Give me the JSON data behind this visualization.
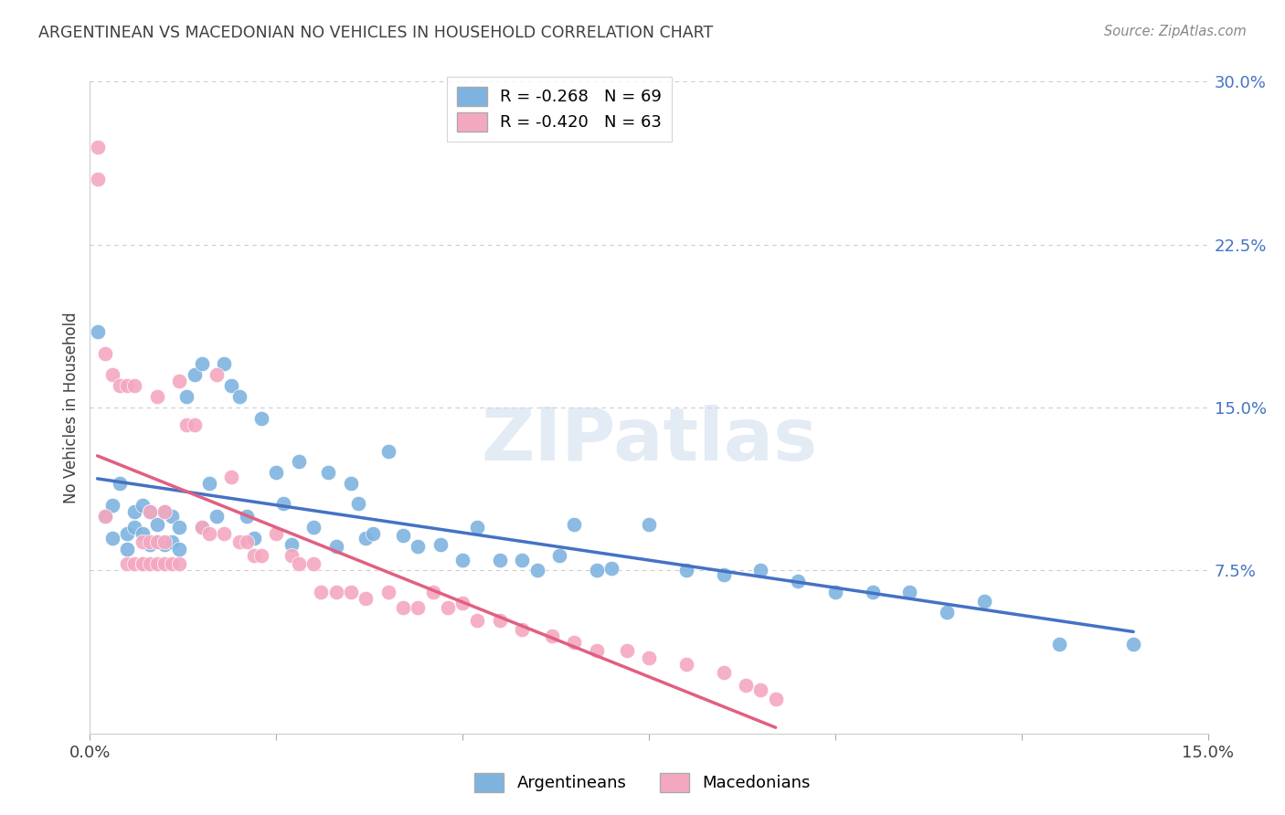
{
  "title": "ARGENTINEAN VS MACEDONIAN NO VEHICLES IN HOUSEHOLD CORRELATION CHART",
  "source": "Source: ZipAtlas.com",
  "ylabel": "No Vehicles in Household",
  "watermark": "ZIPatlas",
  "xlim": [
    0.0,
    0.15
  ],
  "ylim": [
    0.0,
    0.3
  ],
  "xtick_positions": [
    0.0,
    0.025,
    0.05,
    0.075,
    0.1,
    0.125,
    0.15
  ],
  "xtick_labels": [
    "0.0%",
    "",
    "",
    "",
    "",
    "",
    "15.0%"
  ],
  "ytick_labels_right": [
    "7.5%",
    "15.0%",
    "22.5%",
    "30.0%"
  ],
  "yticks_right": [
    0.075,
    0.15,
    0.225,
    0.3
  ],
  "argentinean_R": -0.268,
  "argentinean_N": 69,
  "macedonian_R": -0.42,
  "macedonian_N": 63,
  "argentinean_color": "#7eb3e0",
  "macedonian_color": "#f4a8c0",
  "regression_line_arg_color": "#4472c4",
  "regression_line_mac_color": "#e06080",
  "background_color": "#ffffff",
  "grid_color": "#cccccc",
  "title_color": "#404040",
  "tick_color_right": "#4472c4",
  "argentinean_x": [
    0.001,
    0.002,
    0.003,
    0.003,
    0.004,
    0.005,
    0.005,
    0.006,
    0.006,
    0.007,
    0.007,
    0.008,
    0.008,
    0.009,
    0.009,
    0.01,
    0.01,
    0.011,
    0.011,
    0.012,
    0.012,
    0.013,
    0.014,
    0.015,
    0.015,
    0.016,
    0.017,
    0.018,
    0.019,
    0.02,
    0.021,
    0.022,
    0.023,
    0.025,
    0.026,
    0.027,
    0.028,
    0.03,
    0.032,
    0.033,
    0.035,
    0.036,
    0.037,
    0.038,
    0.04,
    0.042,
    0.044,
    0.047,
    0.05,
    0.052,
    0.055,
    0.058,
    0.06,
    0.063,
    0.065,
    0.068,
    0.07,
    0.075,
    0.08,
    0.085,
    0.09,
    0.095,
    0.1,
    0.105,
    0.11,
    0.115,
    0.12,
    0.13,
    0.14
  ],
  "argentinean_y": [
    0.185,
    0.1,
    0.105,
    0.09,
    0.115,
    0.092,
    0.085,
    0.102,
    0.095,
    0.105,
    0.092,
    0.102,
    0.087,
    0.096,
    0.088,
    0.102,
    0.087,
    0.1,
    0.088,
    0.095,
    0.085,
    0.155,
    0.165,
    0.17,
    0.095,
    0.115,
    0.1,
    0.17,
    0.16,
    0.155,
    0.1,
    0.09,
    0.145,
    0.12,
    0.106,
    0.087,
    0.125,
    0.095,
    0.12,
    0.086,
    0.115,
    0.106,
    0.09,
    0.092,
    0.13,
    0.091,
    0.086,
    0.087,
    0.08,
    0.095,
    0.08,
    0.08,
    0.075,
    0.082,
    0.096,
    0.075,
    0.076,
    0.096,
    0.075,
    0.073,
    0.075,
    0.07,
    0.065,
    0.065,
    0.065,
    0.056,
    0.061,
    0.041,
    0.041
  ],
  "macedonian_x": [
    0.001,
    0.001,
    0.002,
    0.002,
    0.003,
    0.004,
    0.005,
    0.005,
    0.006,
    0.006,
    0.007,
    0.007,
    0.007,
    0.008,
    0.008,
    0.008,
    0.009,
    0.009,
    0.009,
    0.01,
    0.01,
    0.01,
    0.011,
    0.012,
    0.012,
    0.013,
    0.014,
    0.015,
    0.016,
    0.017,
    0.018,
    0.019,
    0.02,
    0.021,
    0.022,
    0.023,
    0.025,
    0.027,
    0.028,
    0.03,
    0.031,
    0.033,
    0.035,
    0.037,
    0.04,
    0.042,
    0.044,
    0.046,
    0.048,
    0.05,
    0.052,
    0.055,
    0.058,
    0.062,
    0.065,
    0.068,
    0.072,
    0.075,
    0.08,
    0.085,
    0.088,
    0.09,
    0.092
  ],
  "macedonian_y": [
    0.27,
    0.255,
    0.175,
    0.1,
    0.165,
    0.16,
    0.16,
    0.078,
    0.16,
    0.078,
    0.078,
    0.088,
    0.078,
    0.102,
    0.088,
    0.078,
    0.155,
    0.088,
    0.078,
    0.102,
    0.088,
    0.078,
    0.078,
    0.162,
    0.078,
    0.142,
    0.142,
    0.095,
    0.092,
    0.165,
    0.092,
    0.118,
    0.088,
    0.088,
    0.082,
    0.082,
    0.092,
    0.082,
    0.078,
    0.078,
    0.065,
    0.065,
    0.065,
    0.062,
    0.065,
    0.058,
    0.058,
    0.065,
    0.058,
    0.06,
    0.052,
    0.052,
    0.048,
    0.045,
    0.042,
    0.038,
    0.038,
    0.035,
    0.032,
    0.028,
    0.022,
    0.02,
    0.016
  ]
}
